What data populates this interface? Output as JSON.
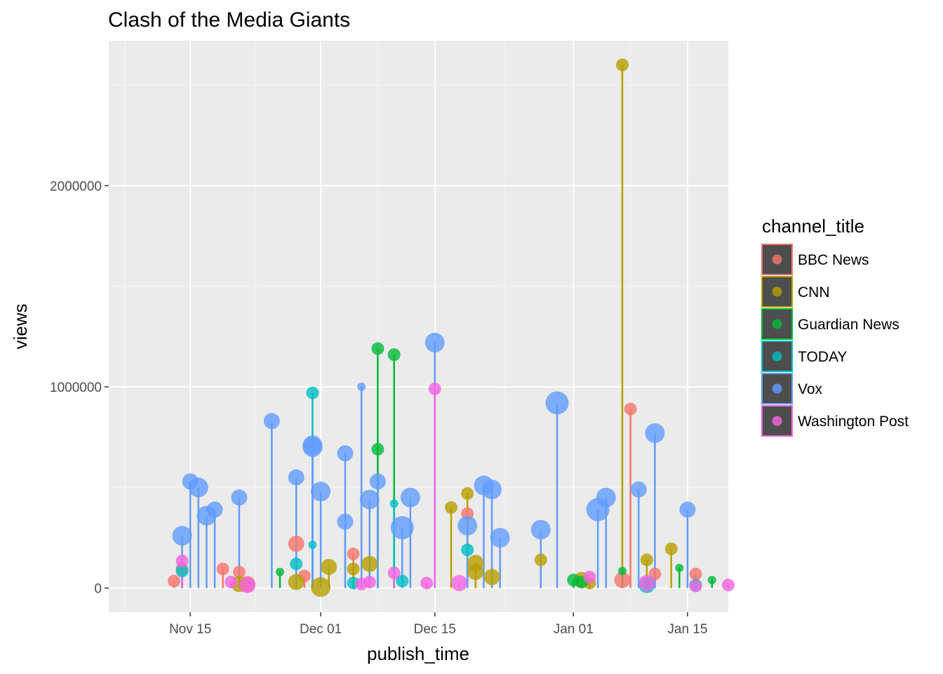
{
  "chart_data": {
    "type": "scatter",
    "title": "Clash of the Media Giants",
    "xlabel": "publish_time",
    "ylabel": "views",
    "x_range": [
      "2017-11-05",
      "2018-01-20"
    ],
    "ylim": [
      -120000,
      2720000
    ],
    "x_ticks": [
      {
        "date": "2017-11-15",
        "label": "Nov 15"
      },
      {
        "date": "2017-12-01",
        "label": "Dec 01"
      },
      {
        "date": "2017-12-15",
        "label": "Dec 15"
      },
      {
        "date": "2018-01-01",
        "label": "Jan 01"
      },
      {
        "date": "2018-01-15",
        "label": "Jan 15"
      }
    ],
    "y_ticks": [
      {
        "value": 0,
        "label": "0"
      },
      {
        "value": 1000000,
        "label": "1000000"
      },
      {
        "value": 2000000,
        "label": "2000000"
      }
    ],
    "grid": true,
    "legend": {
      "title": "channel_title",
      "position": "right"
    },
    "series": [
      {
        "name": "BBC News",
        "color": "#F8766D",
        "points": [
          [
            "2017-11-13",
            35000,
            1
          ],
          [
            "2017-11-14",
            95000,
            1
          ],
          [
            "2017-11-19",
            95000,
            1
          ],
          [
            "2017-11-21",
            80000,
            1
          ],
          [
            "2017-11-22",
            20000,
            2
          ],
          [
            "2017-11-28",
            220000,
            2
          ],
          [
            "2017-11-29",
            60000,
            1
          ],
          [
            "2017-12-05",
            170000,
            1
          ],
          [
            "2017-12-19",
            370000,
            1
          ],
          [
            "2018-01-07",
            40000,
            2
          ],
          [
            "2018-01-08",
            890000,
            1
          ],
          [
            "2018-01-11",
            70000,
            1
          ],
          [
            "2018-01-16",
            70000,
            1
          ]
        ]
      },
      {
        "name": "CNN",
        "color": "#B79F00",
        "points": [
          [
            "2017-11-21",
            20000,
            2
          ],
          [
            "2017-11-28",
            30000,
            2
          ],
          [
            "2017-12-01",
            5000,
            3
          ],
          [
            "2017-12-02",
            105000,
            2
          ],
          [
            "2017-12-05",
            95000,
            1
          ],
          [
            "2017-12-07",
            120000,
            2
          ],
          [
            "2017-12-17",
            400000,
            1
          ],
          [
            "2017-12-19",
            470000,
            1
          ],
          [
            "2017-12-20",
            80000,
            2
          ],
          [
            "2017-12-20",
            125000,
            2
          ],
          [
            "2017-12-22",
            55000,
            2
          ],
          [
            "2017-12-28",
            140000,
            1
          ],
          [
            "2018-01-02",
            40000,
            2
          ],
          [
            "2018-01-03",
            25000,
            1
          ],
          [
            "2018-01-07",
            2600000,
            1
          ],
          [
            "2018-01-10",
            140000,
            1
          ],
          [
            "2018-01-13",
            195000,
            1
          ]
        ]
      },
      {
        "name": "Guardian News",
        "color": "#00BA38",
        "points": [
          [
            "2017-11-26",
            80000,
            0
          ],
          [
            "2017-12-08",
            1190000,
            1
          ],
          [
            "2017-12-08",
            690000,
            1
          ],
          [
            "2017-12-10",
            1160000,
            1
          ],
          [
            "2018-01-01",
            40000,
            1
          ],
          [
            "2018-01-02",
            30000,
            1
          ],
          [
            "2018-01-07",
            85000,
            0
          ],
          [
            "2018-01-10",
            20000,
            0
          ],
          [
            "2018-01-14",
            100000,
            0
          ],
          [
            "2018-01-18",
            40000,
            0
          ]
        ]
      },
      {
        "name": "TODAY",
        "color": "#00BFC4",
        "points": [
          [
            "2017-11-14",
            85000,
            1
          ],
          [
            "2017-11-28",
            120000,
            1
          ],
          [
            "2017-11-30",
            970000,
            1
          ],
          [
            "2017-11-30",
            215000,
            0
          ],
          [
            "2017-12-05",
            25000,
            1
          ],
          [
            "2017-12-10",
            420000,
            0
          ],
          [
            "2017-12-11",
            35000,
            1
          ],
          [
            "2017-12-19",
            190000,
            1
          ],
          [
            "2018-01-10",
            15000,
            2
          ],
          [
            "2018-01-16",
            15000,
            1
          ]
        ]
      },
      {
        "name": "Vox",
        "color": "#619CFF",
        "points": [
          [
            "2017-11-14",
            260000,
            3
          ],
          [
            "2017-11-15",
            530000,
            2
          ],
          [
            "2017-11-16",
            500000,
            3
          ],
          [
            "2017-11-17",
            360000,
            3
          ],
          [
            "2017-11-18",
            390000,
            2
          ],
          [
            "2017-11-21",
            450000,
            2
          ],
          [
            "2017-11-25",
            830000,
            2
          ],
          [
            "2017-11-28",
            550000,
            2
          ],
          [
            "2017-11-30",
            710000,
            3
          ],
          [
            "2017-11-30",
            700000,
            3
          ],
          [
            "2017-12-01",
            480000,
            3
          ],
          [
            "2017-12-04",
            670000,
            2
          ],
          [
            "2017-12-04",
            330000,
            2
          ],
          [
            "2017-12-06",
            1000000,
            0
          ],
          [
            "2017-12-07",
            440000,
            3
          ],
          [
            "2017-12-08",
            530000,
            2
          ],
          [
            "2017-12-11",
            300000,
            4
          ],
          [
            "2017-12-12",
            450000,
            3
          ],
          [
            "2017-12-15",
            1220000,
            3
          ],
          [
            "2017-12-19",
            310000,
            3
          ],
          [
            "2017-12-21",
            510000,
            3
          ],
          [
            "2017-12-22",
            490000,
            3
          ],
          [
            "2017-12-23",
            250000,
            3
          ],
          [
            "2017-12-28",
            290000,
            3
          ],
          [
            "2017-12-30",
            920000,
            4
          ],
          [
            "2018-01-04",
            390000,
            4
          ],
          [
            "2018-01-05",
            450000,
            3
          ],
          [
            "2018-01-09",
            490000,
            2
          ],
          [
            "2018-01-11",
            770000,
            3
          ],
          [
            "2018-01-15",
            390000,
            2
          ]
        ]
      },
      {
        "name": "Washington Post",
        "color": "#F564E3",
        "points": [
          [
            "2017-11-14",
            135000,
            1
          ],
          [
            "2017-11-20",
            30000,
            1
          ],
          [
            "2017-11-22",
            15000,
            2
          ],
          [
            "2017-12-06",
            20000,
            1
          ],
          [
            "2017-12-07",
            30000,
            1
          ],
          [
            "2017-12-10",
            75000,
            1
          ],
          [
            "2017-12-14",
            25000,
            1
          ],
          [
            "2017-12-15",
            990000,
            1
          ],
          [
            "2017-12-18",
            25000,
            2
          ],
          [
            "2018-01-03",
            55000,
            1
          ],
          [
            "2018-01-10",
            25000,
            2
          ],
          [
            "2018-01-16",
            10000,
            1
          ],
          [
            "2018-01-20",
            15000,
            1
          ]
        ]
      }
    ]
  }
}
